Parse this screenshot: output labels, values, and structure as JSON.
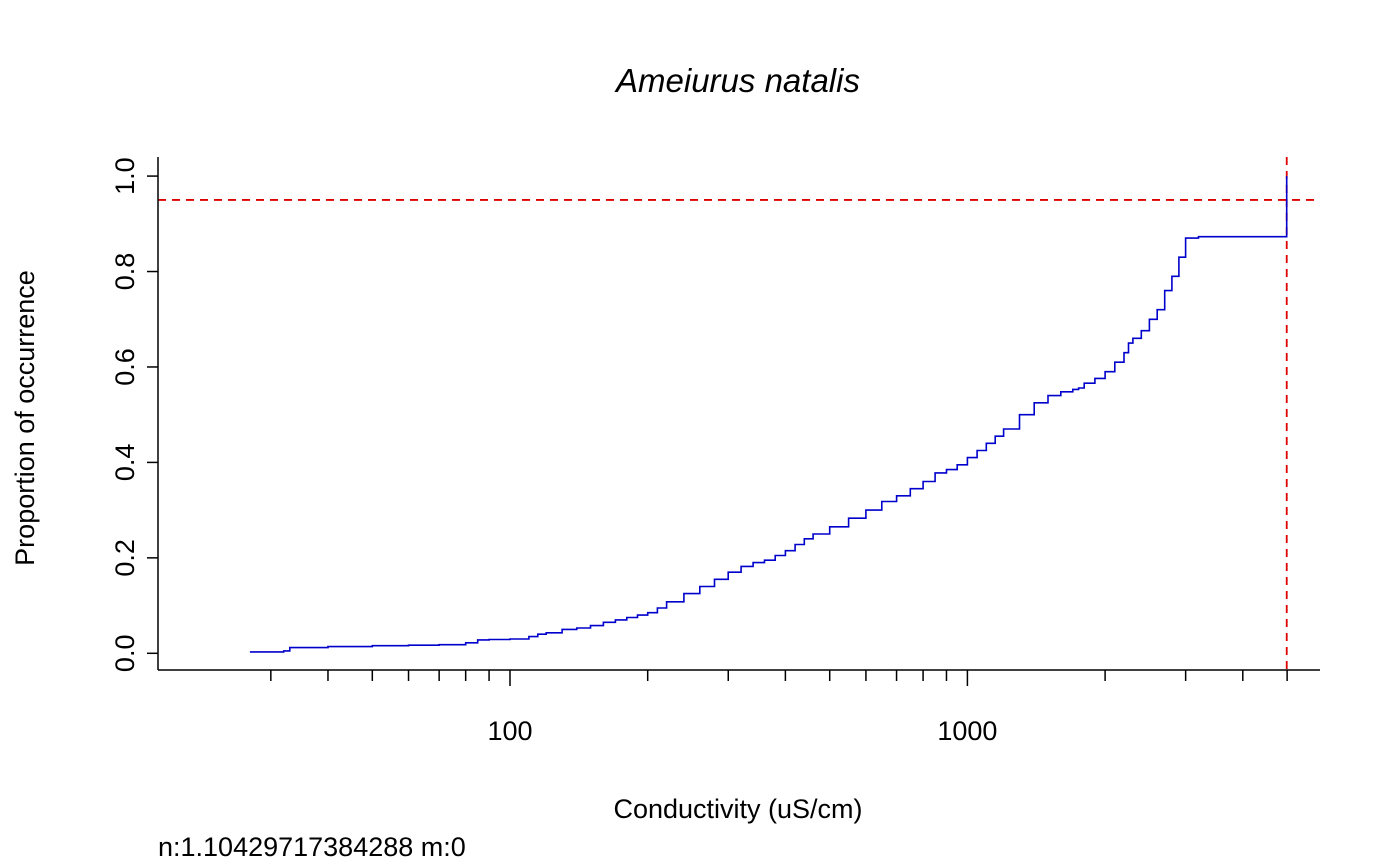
{
  "chart_data": {
    "type": "line",
    "step": true,
    "title": "Ameiurus natalis",
    "xlabel": "Conductivity (uS/cm)",
    "ylabel": "Proportion of occurrence",
    "x_scale": "log",
    "xlim": [
      17,
      5900
    ],
    "ylim": [
      -0.035,
      1.04
    ],
    "x_ticks_labeled": [
      100,
      1000
    ],
    "x_tick_labels": [
      "100",
      "1000"
    ],
    "x_ticks_minor": [
      30,
      40,
      50,
      60,
      70,
      80,
      90,
      200,
      300,
      400,
      500,
      600,
      700,
      800,
      900,
      2000,
      3000,
      4000,
      5000
    ],
    "y_ticks": [
      0.0,
      0.2,
      0.4,
      0.6,
      0.8,
      1.0
    ],
    "y_tick_labels": [
      "0.0",
      "0.2",
      "0.4",
      "0.6",
      "0.8",
      "1.0"
    ],
    "grid": false,
    "series": [
      {
        "color": "#0000cc",
        "x": [
          27,
          32,
          33,
          40,
          50,
          60,
          70,
          80,
          85,
          90,
          100,
          110,
          115,
          120,
          130,
          140,
          150,
          160,
          170,
          180,
          190,
          200,
          210,
          220,
          240,
          260,
          280,
          300,
          320,
          340,
          360,
          380,
          400,
          420,
          440,
          460,
          500,
          550,
          600,
          650,
          700,
          750,
          800,
          850,
          900,
          950,
          1000,
          1050,
          1100,
          1150,
          1200,
          1300,
          1400,
          1500,
          1600,
          1700,
          1750,
          1800,
          1900,
          2000,
          2100,
          2200,
          2250,
          2300,
          2400,
          2500,
          2600,
          2700,
          2800,
          2900,
          3000,
          3200,
          3500,
          4000,
          4500,
          4990
        ],
        "y": [
          0.003,
          0.005,
          0.012,
          0.014,
          0.016,
          0.017,
          0.018,
          0.022,
          0.028,
          0.029,
          0.03,
          0.035,
          0.04,
          0.043,
          0.05,
          0.053,
          0.058,
          0.065,
          0.07,
          0.075,
          0.08,
          0.085,
          0.095,
          0.108,
          0.125,
          0.14,
          0.155,
          0.17,
          0.182,
          0.19,
          0.195,
          0.205,
          0.215,
          0.228,
          0.24,
          0.25,
          0.265,
          0.283,
          0.3,
          0.318,
          0.33,
          0.345,
          0.36,
          0.378,
          0.385,
          0.395,
          0.41,
          0.425,
          0.44,
          0.455,
          0.47,
          0.5,
          0.525,
          0.54,
          0.548,
          0.553,
          0.556,
          0.566,
          0.576,
          0.59,
          0.61,
          0.63,
          0.65,
          0.66,
          0.676,
          0.7,
          0.72,
          0.76,
          0.79,
          0.83,
          0.87,
          0.873,
          0.873,
          0.873,
          0.873,
          1.0
        ]
      }
    ],
    "reference_lines": [
      {
        "orientation": "horizontal",
        "value": 0.95,
        "color": "#dd0000",
        "style": "dashed"
      },
      {
        "orientation": "vertical",
        "value": 4990,
        "color": "#dd0000",
        "style": "dashed"
      }
    ]
  },
  "footnote": "n:1.10429717384288 m:0"
}
